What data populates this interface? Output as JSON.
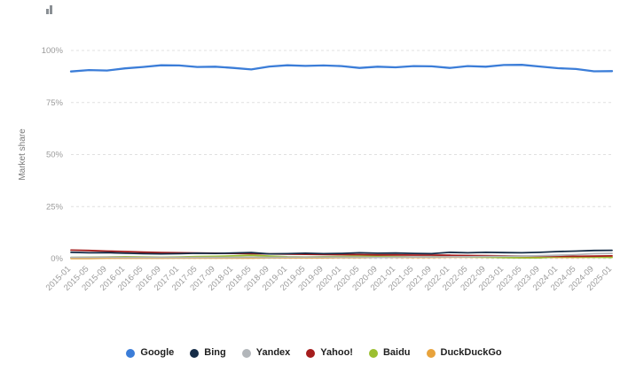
{
  "page": {
    "background": "#ffffff"
  },
  "icons": {
    "corner_icon": "mini-chart-icon"
  },
  "axis_style": {
    "tick_text_color": "#9b9b9b",
    "axis_label_color": "#7a7a7a",
    "grid_color": "#e0e0e0"
  },
  "chart_data": {
    "type": "line",
    "title": "",
    "xlabel": "",
    "ylabel": "Market share",
    "ylim": [
      0,
      100
    ],
    "grid": "horizontal-dashed",
    "legend_position": "bottom",
    "y_ticks": [
      {
        "value": 0,
        "label": "0%"
      },
      {
        "value": 25,
        "label": "25%"
      },
      {
        "value": 50,
        "label": "50%"
      },
      {
        "value": 75,
        "label": "75%"
      },
      {
        "value": 100,
        "label": "100%"
      }
    ],
    "categories": [
      "2015-01",
      "2015-05",
      "2015-09",
      "2016-01",
      "2016-05",
      "2016-09",
      "2017-01",
      "2017-05",
      "2017-09",
      "2018-01",
      "2018-05",
      "2018-09",
      "2019-01",
      "2019-05",
      "2019-09",
      "2020-01",
      "2020-05",
      "2020-09",
      "2021-01",
      "2021-05",
      "2021-09",
      "2022-01",
      "2022-05",
      "2022-09",
      "2023-01",
      "2023-05",
      "2023-09",
      "2024-01",
      "2024-05",
      "2024-09",
      "2025-01"
    ],
    "series": [
      {
        "name": "Google",
        "color": "#3b7dd8",
        "values": [
          89.9,
          90.6,
          90.4,
          91.4,
          92.1,
          92.9,
          92.8,
          92.1,
          92.2,
          91.6,
          90.9,
          92.3,
          92.9,
          92.6,
          92.8,
          92.5,
          91.6,
          92.2,
          91.9,
          92.5,
          92.4,
          91.6,
          92.5,
          92.2,
          93.0,
          93.1,
          92.3,
          91.5,
          91.1,
          90.0,
          90.1
        ]
      },
      {
        "name": "Bing",
        "color": "#152c47",
        "values": [
          3.0,
          2.8,
          2.9,
          2.6,
          2.4,
          2.3,
          2.4,
          2.6,
          2.5,
          2.7,
          2.9,
          2.3,
          2.4,
          2.6,
          2.4,
          2.5,
          2.8,
          2.6,
          2.7,
          2.5,
          2.4,
          3.0,
          2.8,
          3.0,
          2.9,
          2.8,
          3.0,
          3.4,
          3.6,
          3.9,
          4.0
        ]
      },
      {
        "name": "Yandex",
        "color": "#b2b6ba",
        "values": [
          0.6,
          0.6,
          0.7,
          0.6,
          0.6,
          0.6,
          0.6,
          0.6,
          0.6,
          0.6,
          0.7,
          0.6,
          0.7,
          0.7,
          0.7,
          0.7,
          0.7,
          0.6,
          0.7,
          0.8,
          0.8,
          0.9,
          0.9,
          1.0,
          1.1,
          1.2,
          1.4,
          1.6,
          1.9,
          2.4,
          2.5
        ]
      },
      {
        "name": "Yahoo!",
        "color": "#a51d1d",
        "values": [
          4.1,
          3.9,
          3.6,
          3.4,
          3.1,
          2.9,
          2.8,
          2.7,
          2.6,
          2.5,
          2.4,
          2.3,
          2.2,
          2.1,
          2.0,
          1.9,
          1.9,
          1.8,
          1.8,
          1.7,
          1.7,
          1.6,
          1.5,
          1.4,
          1.3,
          1.2,
          1.2,
          1.1,
          1.1,
          1.2,
          1.3
        ]
      },
      {
        "name": "Baidu",
        "color": "#9bbf30",
        "values": [
          0.6,
          0.7,
          0.8,
          0.9,
          0.8,
          0.7,
          0.8,
          1.0,
          1.1,
          1.3,
          1.6,
          1.2,
          0.9,
          0.8,
          0.9,
          1.0,
          1.2,
          1.1,
          1.0,
          0.8,
          0.9,
          1.2,
          0.8,
          0.7,
          0.5,
          0.4,
          0.4,
          0.9,
          0.8,
          0.7,
          0.6
        ]
      },
      {
        "name": "DuckDuckGo",
        "color": "#e8a33c",
        "values": [
          0.1,
          0.1,
          0.2,
          0.2,
          0.2,
          0.2,
          0.3,
          0.3,
          0.3,
          0.3,
          0.3,
          0.4,
          0.4,
          0.4,
          0.4,
          0.5,
          0.5,
          0.6,
          0.6,
          0.6,
          0.6,
          0.7,
          0.7,
          0.7,
          0.6,
          0.6,
          0.6,
          0.6,
          0.6,
          0.7,
          0.8
        ]
      }
    ]
  }
}
